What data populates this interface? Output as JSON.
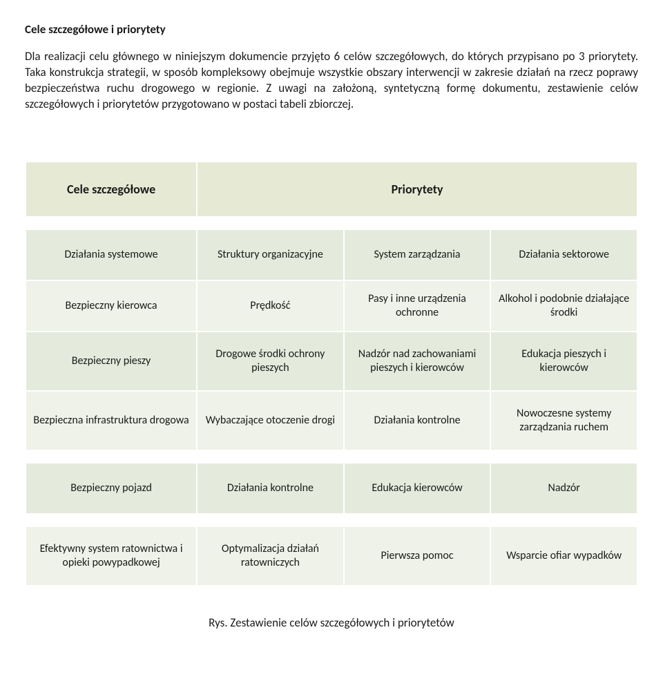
{
  "heading": "Cele szczegółowe i priorytety",
  "paragraph": "Dla realizacji celu głównego w niniejszym dokumencie przyjęto 6 celów szczegółowych, do których przypisano po 3 priorytety. Taka konstrukcja strategii, w sposób kompleksowy obejmuje wszystkie obszary interwencji w zakresie działań na rzecz poprawy bezpieczeństwa ruchu drogowego w regionie. Z uwagi na założoną, syntetyczną formę dokumentu, zestawienie celów szczegółowych i priorytetów przygotowano w postaci tabeli zbiorczej.",
  "table": {
    "header_left": "Cele szczegółowe",
    "header_right": "Priorytety",
    "rows": [
      {
        "goal": "Działania systemowe",
        "p1": "Struktury organizacyjne",
        "p2": "System zarządzania",
        "p3": "Działania sektorowe"
      },
      {
        "goal": "Bezpieczny kierowca",
        "p1": "Prędkość",
        "p2": "Pasy i inne urządzenia ochronne",
        "p3": "Alkohol i podobnie działające środki"
      },
      {
        "goal": "Bezpieczny pieszy",
        "p1": "Drogowe środki ochrony pieszych",
        "p2": "Nadzór nad zachowaniami pieszych i kierowców",
        "p3": "Edukacja pieszych i kierowców"
      },
      {
        "goal": "Bezpieczna infrastruktura drogowa",
        "p1": "Wybaczające otoczenie drogi",
        "p2": "Działania kontrolne",
        "p3": "Nowoczesne systemy zarządzania ruchem"
      },
      {
        "goal": "Bezpieczny pojazd",
        "p1": "Działania kontrolne",
        "p2": "Edukacja kierowców",
        "p3": "Nadzór"
      },
      {
        "goal": "Efektywny system ratownictwa i opieki powypadkowej",
        "p1": "Optymalizacja działań ratowniczych",
        "p2": "Pierwsza pomoc",
        "p3": "Wsparcie ofiar wypadków"
      }
    ]
  },
  "caption": "Rys. Zestawienie celów szczegółowych i priorytetów",
  "colors": {
    "beige": "#e6ead4",
    "green1": "#e4ebdc",
    "green2": "#eef2e8",
    "border": "#ffffff"
  }
}
